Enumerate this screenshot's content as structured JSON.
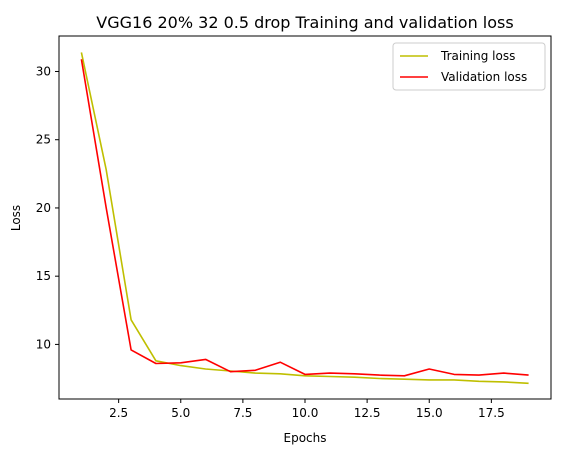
{
  "chart_data": {
    "type": "line",
    "title": "VGG16 20% 32 0.5 drop Training and validation loss",
    "xlabel": "Epochs",
    "ylabel": "Loss",
    "xlim": [
      0.1,
      19.9
    ],
    "ylim": [
      6.0,
      32.6
    ],
    "xticks": [
      2.5,
      5.0,
      7.5,
      10.0,
      12.5,
      15.0,
      17.5
    ],
    "xtick_labels": [
      "2.5",
      "5.0",
      "7.5",
      "10.0",
      "12.5",
      "15.0",
      "17.5"
    ],
    "yticks": [
      10,
      15,
      20,
      25,
      30
    ],
    "ytick_labels": [
      "10",
      "15",
      "20",
      "25",
      "30"
    ],
    "grid": false,
    "legend_position": "top-right",
    "x": [
      1,
      2,
      3,
      4,
      5,
      6,
      7,
      8,
      9,
      10,
      11,
      12,
      13,
      14,
      15,
      16,
      17,
      18,
      19
    ],
    "series": [
      {
        "name": "Training loss",
        "color": "#bfbf00",
        "values": [
          31.4,
          22.8,
          11.8,
          8.8,
          8.45,
          8.2,
          8.05,
          7.9,
          7.85,
          7.7,
          7.65,
          7.6,
          7.5,
          7.45,
          7.4,
          7.4,
          7.3,
          7.25,
          7.15
        ]
      },
      {
        "name": "Validation loss",
        "color": "#ff0000",
        "values": [
          30.9,
          20.0,
          9.6,
          8.6,
          8.65,
          8.9,
          8.0,
          8.1,
          8.7,
          7.8,
          7.9,
          7.85,
          7.75,
          7.7,
          8.2,
          7.8,
          7.75,
          7.9,
          7.75
        ]
      }
    ]
  }
}
